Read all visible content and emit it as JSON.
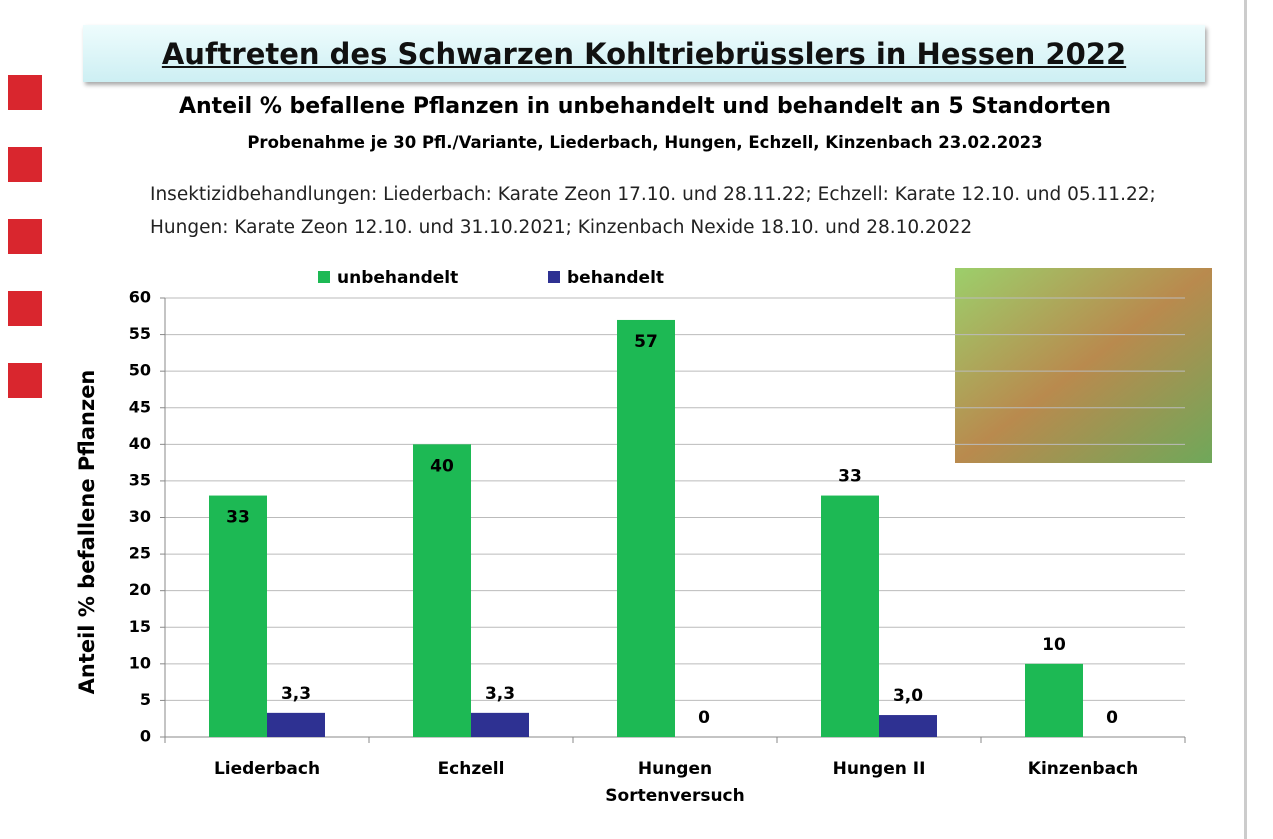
{
  "chart_data": {
    "type": "bar",
    "title": "Auftreten des Schwarzen Kohltriebrüsslers in Hessen 2022",
    "subtitle": "Anteil % befallene Pflanzen in unbehandelt und behandelt an 5 Standorten",
    "subtitle2": "Probenahme je 30 Pfl./Variante, Liederbach, Hungen, Echzell, Kinzenbach 23.02.2023",
    "note": "Insektizidbehandlungen: Liederbach: Karate Zeon 17.10. und 28.11.22; Echzell: Karate 12.10. und 05.11.22; Hungen: Karate Zeon 12.10. und 31.10.2021; Kinzenbach Nexide 18.10. und 28.10.2022",
    "ylabel": "Anteil %  befallene Pflanzen",
    "categories": [
      "Liederbach",
      "Echzell",
      "Hungen Sortenversuch",
      "Hungen II",
      "Kinzenbach"
    ],
    "series": [
      {
        "name": "unbehandelt",
        "color": "#1db954",
        "values": [
          33,
          40,
          57,
          33,
          10
        ]
      },
      {
        "name": "behandelt",
        "color": "#2e3192",
        "values": [
          3.3,
          3.3,
          0,
          3.0,
          0
        ],
        "value_labels": [
          "3,3",
          "3,3",
          "0",
          "3,0",
          "0"
        ]
      }
    ],
    "ylim": [
      0,
      60
    ],
    "yticks": [
      0,
      5,
      10,
      15,
      20,
      25,
      30,
      35,
      40,
      45,
      50,
      55,
      60
    ],
    "grid": true,
    "legend": "top"
  }
}
